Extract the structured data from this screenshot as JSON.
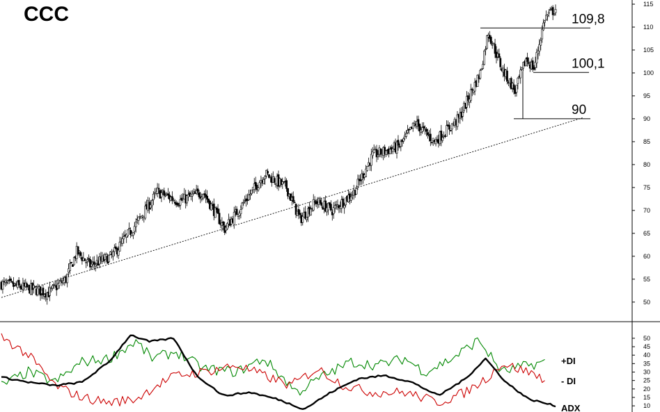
{
  "title": "CCC",
  "chart_data": [
    {
      "type": "candlestick",
      "title": "CCC",
      "ylim": [
        48,
        115
      ],
      "y_ticks": [
        115,
        110,
        105,
        100,
        95,
        90,
        85,
        80,
        75,
        70,
        65,
        60,
        55,
        50
      ],
      "price_path": [
        {
          "i": 0,
          "v": 54
        },
        {
          "i": 20,
          "v": 53
        },
        {
          "i": 35,
          "v": 52
        },
        {
          "i": 48,
          "v": 55
        },
        {
          "i": 56,
          "v": 61
        },
        {
          "i": 66,
          "v": 58
        },
        {
          "i": 82,
          "v": 60
        },
        {
          "i": 100,
          "v": 67
        },
        {
          "i": 116,
          "v": 74
        },
        {
          "i": 132,
          "v": 72
        },
        {
          "i": 150,
          "v": 74
        },
        {
          "i": 166,
          "v": 66
        },
        {
          "i": 176,
          "v": 70
        },
        {
          "i": 196,
          "v": 78
        },
        {
          "i": 212,
          "v": 75
        },
        {
          "i": 222,
          "v": 68
        },
        {
          "i": 234,
          "v": 72
        },
        {
          "i": 246,
          "v": 70
        },
        {
          "i": 262,
          "v": 74
        },
        {
          "i": 276,
          "v": 82
        },
        {
          "i": 296,
          "v": 84
        },
        {
          "i": 308,
          "v": 89
        },
        {
          "i": 322,
          "v": 85
        },
        {
          "i": 340,
          "v": 90
        },
        {
          "i": 356,
          "v": 100
        },
        {
          "i": 362,
          "v": 109
        },
        {
          "i": 372,
          "v": 101
        },
        {
          "i": 382,
          "v": 96
        },
        {
          "i": 390,
          "v": 103
        },
        {
          "i": 396,
          "v": 101
        },
        {
          "i": 404,
          "v": 112
        },
        {
          "i": 412,
          "v": 114
        }
      ],
      "levels": [
        {
          "label": "109,8",
          "value": 109.8
        },
        {
          "label": "100,1",
          "value": 100.1
        },
        {
          "label": "90",
          "value": 90
        }
      ],
      "trendline": {
        "from": {
          "i": 0,
          "v": 51
        },
        "to": {
          "i": 432,
          "v": 90.2
        }
      }
    },
    {
      "type": "line",
      "ylim": [
        8,
        52
      ],
      "y_ticks": [
        50,
        45,
        40,
        35,
        30,
        25,
        20,
        15,
        10
      ],
      "series": [
        {
          "name": "+DI",
          "color": "#008800",
          "points": [
            {
              "i": 0,
              "v": 22
            },
            {
              "i": 20,
              "v": 30
            },
            {
              "i": 40,
              "v": 24
            },
            {
              "i": 60,
              "v": 36
            },
            {
              "i": 80,
              "v": 38
            },
            {
              "i": 100,
              "v": 48
            },
            {
              "i": 112,
              "v": 38
            },
            {
              "i": 130,
              "v": 42
            },
            {
              "i": 150,
              "v": 32
            },
            {
              "i": 175,
              "v": 30
            },
            {
              "i": 195,
              "v": 38
            },
            {
              "i": 220,
              "v": 18
            },
            {
              "i": 240,
              "v": 28
            },
            {
              "i": 260,
              "v": 36
            },
            {
              "i": 280,
              "v": 34
            },
            {
              "i": 300,
              "v": 38
            },
            {
              "i": 315,
              "v": 30
            },
            {
              "i": 335,
              "v": 38
            },
            {
              "i": 355,
              "v": 49
            },
            {
              "i": 372,
              "v": 30
            },
            {
              "i": 392,
              "v": 34
            },
            {
              "i": 404,
              "v": 36
            }
          ]
        },
        {
          "name": "- DI",
          "color": "#cc0000",
          "points": [
            {
              "i": 0,
              "v": 51
            },
            {
              "i": 20,
              "v": 40
            },
            {
              "i": 40,
              "v": 22
            },
            {
              "i": 60,
              "v": 15
            },
            {
              "i": 80,
              "v": 12
            },
            {
              "i": 100,
              "v": 14
            },
            {
              "i": 115,
              "v": 22
            },
            {
              "i": 130,
              "v": 28
            },
            {
              "i": 150,
              "v": 30
            },
            {
              "i": 175,
              "v": 34
            },
            {
              "i": 195,
              "v": 28
            },
            {
              "i": 215,
              "v": 22
            },
            {
              "i": 235,
              "v": 32
            },
            {
              "i": 255,
              "v": 22
            },
            {
              "i": 275,
              "v": 18
            },
            {
              "i": 300,
              "v": 18
            },
            {
              "i": 325,
              "v": 12
            },
            {
              "i": 345,
              "v": 18
            },
            {
              "i": 360,
              "v": 26
            },
            {
              "i": 372,
              "v": 35
            },
            {
              "i": 392,
              "v": 30
            },
            {
              "i": 404,
              "v": 26
            }
          ]
        },
        {
          "name": "ADX",
          "color": "#000000",
          "points": [
            {
              "i": 0,
              "v": 27
            },
            {
              "i": 20,
              "v": 24
            },
            {
              "i": 40,
              "v": 22
            },
            {
              "i": 60,
              "v": 24
            },
            {
              "i": 80,
              "v": 36
            },
            {
              "i": 96,
              "v": 52
            },
            {
              "i": 110,
              "v": 48
            },
            {
              "i": 128,
              "v": 50
            },
            {
              "i": 145,
              "v": 28
            },
            {
              "i": 165,
              "v": 16
            },
            {
              "i": 185,
              "v": 18
            },
            {
              "i": 205,
              "v": 14
            },
            {
              "i": 225,
              "v": 8
            },
            {
              "i": 245,
              "v": 18
            },
            {
              "i": 265,
              "v": 26
            },
            {
              "i": 285,
              "v": 28
            },
            {
              "i": 305,
              "v": 24
            },
            {
              "i": 325,
              "v": 16
            },
            {
              "i": 345,
              "v": 26
            },
            {
              "i": 360,
              "v": 38
            },
            {
              "i": 375,
              "v": 24
            },
            {
              "i": 392,
              "v": 14
            },
            {
              "i": 412,
              "v": 10
            }
          ]
        }
      ]
    }
  ]
}
